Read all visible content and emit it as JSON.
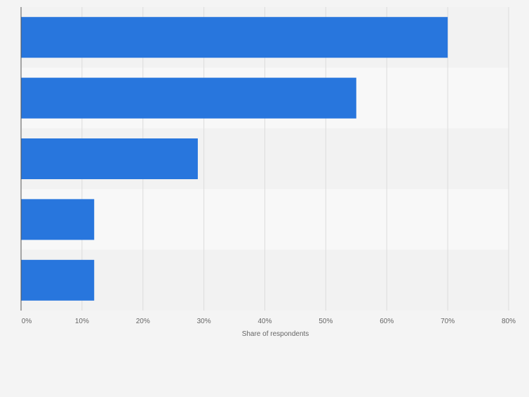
{
  "chart_data": {
    "type": "bar",
    "orientation": "horizontal",
    "categories": [
      "",
      "",
      "",
      "",
      ""
    ],
    "values": [
      70,
      55,
      29,
      12,
      12
    ],
    "xlabel": "Share of respondents",
    "ylabel": "",
    "xlim": [
      0,
      80
    ],
    "ticks": [
      "0%",
      "10%",
      "20%",
      "30%",
      "40%",
      "50%",
      "60%",
      "70%",
      "80%"
    ],
    "grid": true,
    "legend": "none",
    "colors": {
      "bar": "#2876dd",
      "band_dark": "#f2f2f2",
      "band_light": "#f8f8f8",
      "grid": "#dcdcdc",
      "axis": "#555555",
      "text": "#666666"
    }
  }
}
